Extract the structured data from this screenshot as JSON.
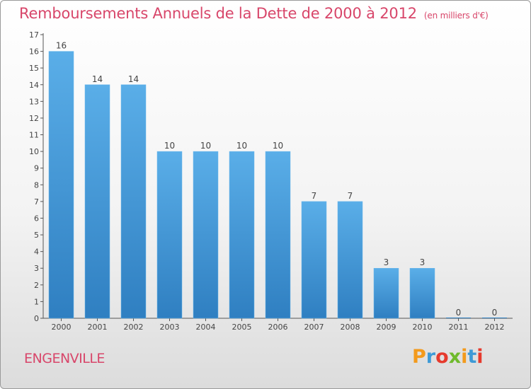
{
  "header": {
    "title": "Remboursements Annuels de la Dette de 2000 à 2012",
    "subtitle": "(en milliers d'€)"
  },
  "footer": {
    "commune": "ENGENVILLE",
    "logo_text": "Proxiti",
    "logo_colors": [
      "#f39a1c",
      "#3e9ad6",
      "#e63a2d",
      "#6fba2c",
      "#f39a1c",
      "#3e9ad6",
      "#e63a2d"
    ]
  },
  "chart_data": {
    "type": "bar",
    "title": "Remboursements Annuels de la Dette de 2000 à 2012",
    "xlabel": "",
    "ylabel": "",
    "categories": [
      "2000",
      "2001",
      "2002",
      "2003",
      "2004",
      "2005",
      "2006",
      "2007",
      "2008",
      "2009",
      "2010",
      "2011",
      "2012"
    ],
    "values": [
      16,
      14,
      14,
      10,
      10,
      10,
      10,
      7,
      7,
      3,
      3,
      0,
      0
    ],
    "ylim": [
      0,
      17
    ],
    "yticks": [
      0,
      1,
      2,
      3,
      4,
      5,
      6,
      7,
      8,
      9,
      10,
      11,
      12,
      13,
      14,
      15,
      16,
      17
    ],
    "grid": false,
    "bar_color_top": "#5aaee8",
    "bar_color_bottom": "#2f7fc1"
  }
}
